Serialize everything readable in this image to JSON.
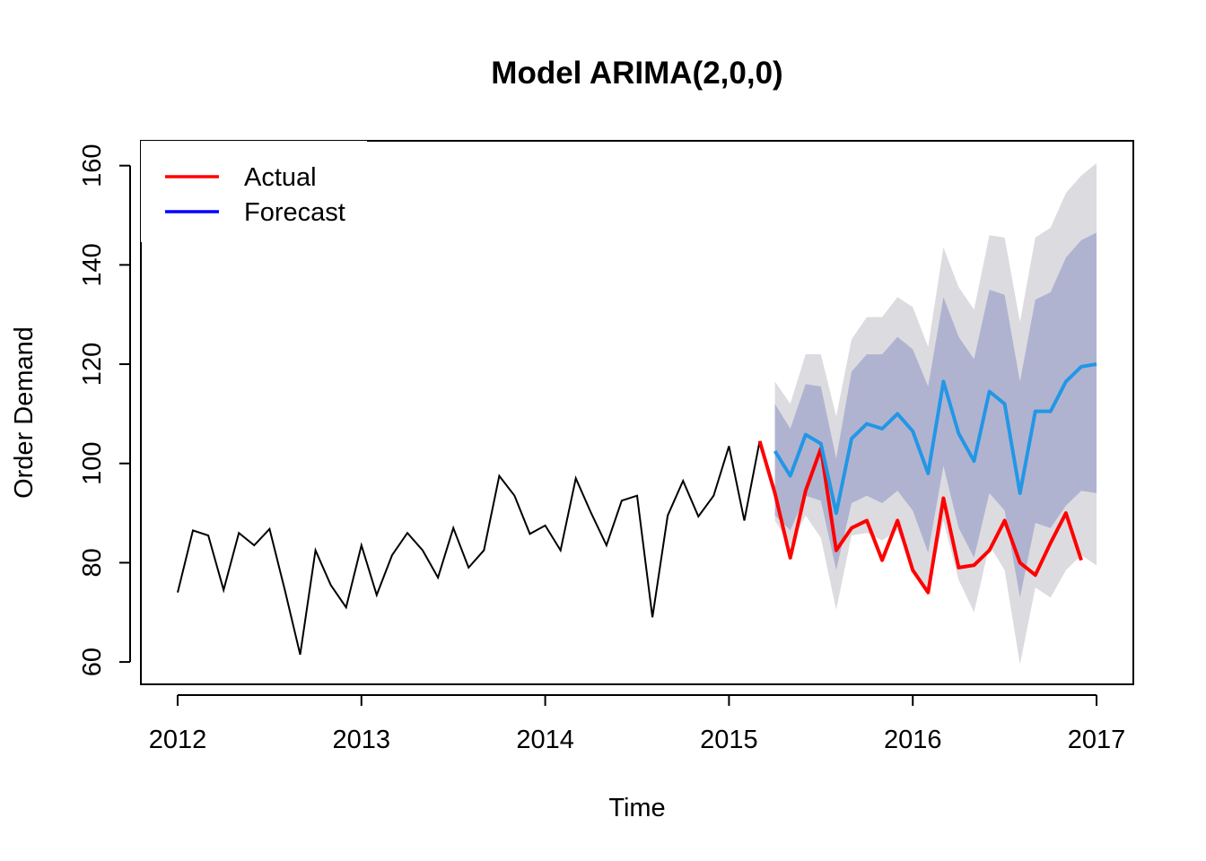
{
  "chart_data": {
    "type": "line",
    "title": "Model ARIMA(2,0,0)",
    "xlabel": "Time",
    "ylabel": "Order Demand",
    "xlim": [
      2011.8,
      2017.2
    ],
    "ylim": [
      55.5,
      165
    ],
    "x_ticks": [
      2012,
      2013,
      2014,
      2015,
      2016,
      2017
    ],
    "x_tick_labels": [
      "2012",
      "2013",
      "2014",
      "2015",
      "2016",
      "2017"
    ],
    "y_ticks": [
      60,
      80,
      100,
      120,
      140,
      160
    ],
    "y_tick_labels": [
      "60",
      "80",
      "100",
      "120",
      "140",
      "160"
    ],
    "grid": false,
    "legend": {
      "position": "top-left",
      "entries": [
        {
          "label": "Actual",
          "color": "#ff0000"
        },
        {
          "label": "Forecast",
          "color": "#0000ff"
        }
      ]
    },
    "history": {
      "color": "#000000",
      "x": [
        2012.0,
        2012.0833,
        2012.1667,
        2012.25,
        2012.3333,
        2012.4167,
        2012.5,
        2012.5833,
        2012.6667,
        2012.75,
        2012.8333,
        2012.9167,
        2013.0,
        2013.0833,
        2013.1667,
        2013.25,
        2013.3333,
        2013.4167,
        2013.5,
        2013.5833,
        2013.6667,
        2013.75,
        2013.8333,
        2013.9167,
        2014.0,
        2014.0833,
        2014.1667,
        2014.25,
        2014.3333,
        2014.4167,
        2014.5,
        2014.5833,
        2014.6667,
        2014.75,
        2014.8333,
        2014.9167,
        2015.0,
        2015.0833,
        2015.1667
      ],
      "y": [
        74,
        86.5,
        85.5,
        74.5,
        86,
        83.5,
        86.8,
        74.5,
        61.5,
        82.5,
        75.5,
        71,
        83.5,
        73.5,
        81.5,
        86,
        82.5,
        77,
        87,
        79,
        82.5,
        97.5,
        93.5,
        85.8,
        87.5,
        82.5,
        97,
        90,
        83.5,
        92.5,
        93.5,
        69,
        89.5,
        96.5,
        89.3,
        93.5,
        103.5,
        88.5,
        104.5
      ]
    },
    "actual": {
      "name": "Actual",
      "color": "#ff0000",
      "x": [
        2015.1667,
        2015.25,
        2015.3333,
        2015.4167,
        2015.5,
        2015.5833,
        2015.6667,
        2015.75,
        2015.8333,
        2015.9167,
        2016.0,
        2016.0833,
        2016.1667,
        2016.25,
        2016.3333,
        2016.4167,
        2016.5,
        2016.5833,
        2016.6667,
        2016.75,
        2016.8333,
        2016.9167
      ],
      "y": [
        104.5,
        94,
        81,
        94.5,
        103,
        82.5,
        87,
        88.5,
        80.5,
        88.5,
        78.5,
        74,
        93,
        79,
        79.5,
        82.5,
        88.5,
        80,
        77.5,
        84,
        90,
        80.5
      ]
    },
    "forecast": {
      "name": "Forecast",
      "color": "#2297e6",
      "x": [
        2015.25,
        2015.3333,
        2015.4167,
        2015.5,
        2015.5833,
        2015.6667,
        2015.75,
        2015.8333,
        2015.9167,
        2016.0,
        2016.0833,
        2016.1667,
        2016.25,
        2016.3333,
        2016.4167,
        2016.5,
        2016.5833,
        2016.6667,
        2016.75,
        2016.8333,
        2016.9167,
        2017.0
      ],
      "y": [
        102.5,
        97.5,
        105.8,
        104,
        90,
        105,
        108,
        107,
        110,
        106.5,
        98,
        116.5,
        106,
        100.5,
        114.5,
        112,
        94,
        110.5,
        110.5,
        116.5,
        119.5,
        120
      ],
      "lo80": [
        89.5,
        86.5,
        93.5,
        92.5,
        78.5,
        92,
        93.5,
        92,
        94.5,
        90.5,
        82,
        99.5,
        87,
        81,
        94,
        90.5,
        73,
        88,
        87,
        91.5,
        94.5,
        94
      ],
      "hi80": [
        112,
        107,
        116,
        115.5,
        101,
        118.5,
        122,
        122,
        125.5,
        123,
        115.5,
        133.5,
        125.5,
        121,
        135,
        134,
        116.5,
        133,
        134.5,
        141.5,
        145,
        146.5
      ],
      "lo95": [
        88.5,
        83.5,
        89.5,
        85,
        70.5,
        85.5,
        86,
        84.5,
        86.5,
        79,
        74,
        88.5,
        76.5,
        70,
        83.5,
        78.5,
        59.5,
        75,
        73,
        78.5,
        81.5,
        79.5
      ],
      "hi95": [
        116.5,
        112,
        122,
        122,
        109.5,
        125,
        129.5,
        129.5,
        133.5,
        131.5,
        123.5,
        143.5,
        135.5,
        131,
        146,
        145.5,
        128.5,
        145.5,
        147.5,
        154.5,
        158,
        160.5
      ],
      "band80_color": "#b0b3d0",
      "band95_color": "#dcdce0"
    }
  }
}
